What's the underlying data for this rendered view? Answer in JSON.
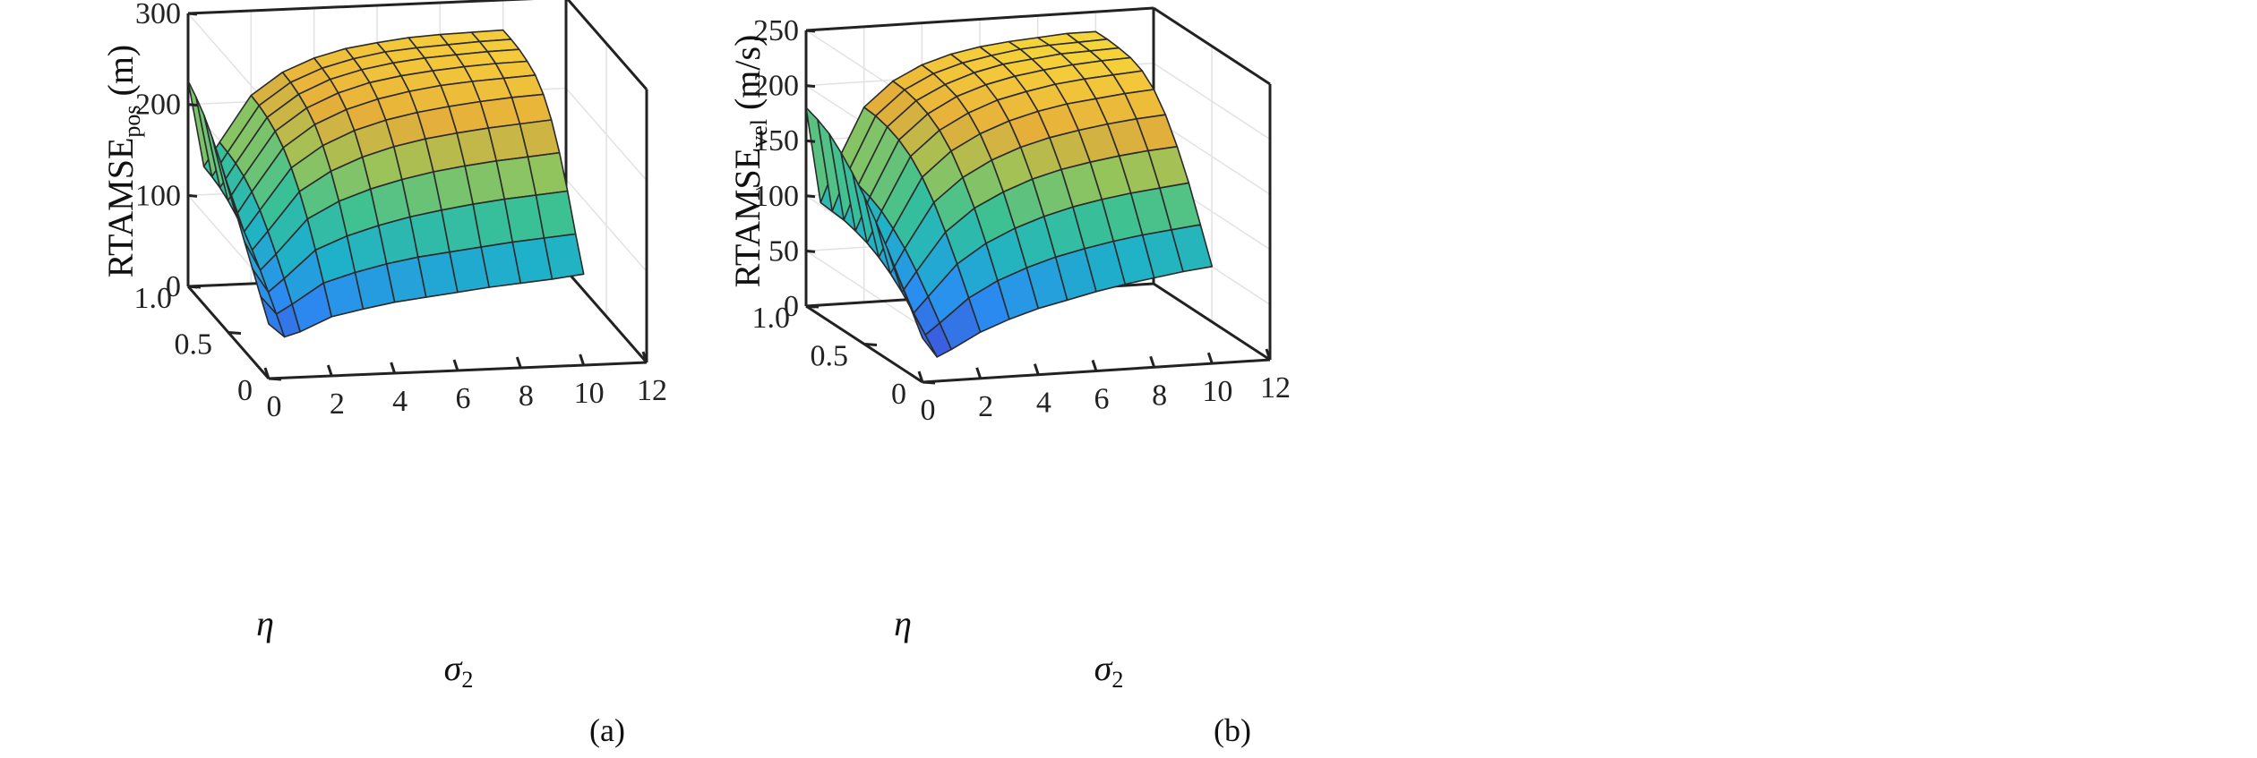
{
  "colors": {
    "colormap": [
      "#3e26a8",
      "#3a5ee0",
      "#2a8ef0",
      "#1fb1c8",
      "#3bc194",
      "#97c45a",
      "#e4ae3a",
      "#f4c83a",
      "#f5e83b"
    ],
    "axis": "#222222",
    "grid": "#e2e2e2"
  },
  "chart_data": [
    {
      "type": "surface",
      "caption": "(a)",
      "zlabel_main": "RTAMSE",
      "zlabel_sub": "pos",
      "zlabel_unit": " (m)",
      "xlabel_main": "σ",
      "xlabel_sub": "2",
      "ylabel": "η",
      "xlim": [
        0,
        12
      ],
      "ylim": [
        0,
        1
      ],
      "zlim": [
        0,
        300
      ],
      "x_ticks": [
        "0",
        "2",
        "4",
        "6",
        "8",
        "10",
        "12"
      ],
      "y_ticks": [
        "0",
        "0.5",
        "1.0"
      ],
      "z_ticks": [
        "0",
        "100",
        "200",
        "300"
      ],
      "sigma2": [
        0,
        0.5,
        1,
        2,
        3,
        4,
        5,
        6,
        7,
        8,
        9,
        10
      ],
      "eta": [
        0,
        0.1,
        0.2,
        0.3,
        0.4,
        0.5,
        0.6,
        0.7,
        0.8,
        0.9,
        1.0
      ],
      "z": [
        [
          60,
          45,
          50,
          65,
          72,
          78,
          82,
          86,
          90,
          93,
          96,
          100
        ],
        [
          80,
          60,
          70,
          92,
          102,
          110,
          116,
          120,
          124,
          128,
          131,
          134
        ],
        [
          100,
          74,
          88,
          118,
          132,
          142,
          150,
          156,
          161,
          165,
          168,
          171
        ],
        [
          120,
          88,
          105,
          142,
          160,
          172,
          181,
          188,
          193,
          197,
          200,
          203
        ],
        [
          140,
          100,
          120,
          162,
          183,
          197,
          207,
          214,
          219,
          223,
          226,
          229
        ],
        [
          160,
          110,
          133,
          178,
          201,
          216,
          226,
          233,
          238,
          242,
          245,
          247
        ],
        [
          178,
          118,
          143,
          190,
          214,
          229,
          239,
          246,
          251,
          254,
          256,
          258
        ],
        [
          194,
          124,
          150,
          198,
          222,
          237,
          247,
          253,
          257,
          260,
          262,
          263
        ],
        [
          208,
          128,
          154,
          203,
          227,
          242,
          251,
          257,
          261,
          263,
          265,
          266
        ],
        [
          218,
          130,
          156,
          206,
          230,
          244,
          253,
          259,
          262,
          264,
          266,
          267
        ],
        [
          226,
          131,
          157,
          207,
          231,
          245,
          254,
          259,
          263,
          265,
          266,
          267
        ]
      ]
    },
    {
      "type": "surface",
      "caption": "(b)",
      "zlabel_main": "RTAMSE",
      "zlabel_sub": "vel",
      "zlabel_unit": " (m/s)",
      "xlabel_main": "σ",
      "xlabel_sub": "2",
      "ylabel": "η",
      "xlim": [
        0,
        12
      ],
      "ylim": [
        0,
        1
      ],
      "zlim": [
        0,
        250
      ],
      "x_ticks": [
        "0",
        "2",
        "4",
        "6",
        "8",
        "10",
        "12"
      ],
      "y_ticks": [
        "0",
        "0.5",
        "1.0"
      ],
      "z_ticks": [
        "0",
        "50",
        "100",
        "150",
        "200",
        "250"
      ],
      "sigma2": [
        0,
        0.5,
        1,
        2,
        3,
        4,
        5,
        6,
        7,
        8,
        9,
        10
      ],
      "eta": [
        0,
        0.1,
        0.2,
        0.3,
        0.4,
        0.5,
        0.6,
        0.7,
        0.8,
        0.9,
        1.0
      ],
      "z": [
        [
          40,
          22,
          28,
          42,
          52,
          60,
          66,
          72,
          77,
          81,
          85,
          88
        ],
        [
          60,
          35,
          45,
          66,
          80,
          90,
          98,
          104,
          109,
          113,
          116,
          119
        ],
        [
          80,
          48,
          62,
          90,
          107,
          119,
          128,
          135,
          140,
          144,
          147,
          150
        ],
        [
          100,
          60,
          78,
          112,
          132,
          145,
          155,
          162,
          167,
          171,
          174,
          176
        ],
        [
          118,
          70,
          92,
          132,
          153,
          167,
          177,
          184,
          189,
          193,
          196,
          198
        ],
        [
          134,
          78,
          103,
          148,
          170,
          184,
          194,
          201,
          206,
          209,
          212,
          214
        ],
        [
          148,
          84,
          112,
          160,
          182,
          196,
          206,
          212,
          217,
          220,
          222,
          224
        ],
        [
          160,
          88,
          118,
          168,
          190,
          204,
          213,
          219,
          223,
          226,
          228,
          229
        ],
        [
          170,
          91,
          122,
          173,
          195,
          208,
          217,
          223,
          226,
          229,
          230,
          231
        ],
        [
          176,
          92,
          124,
          176,
          198,
          211,
          219,
          224,
          228,
          230,
          231,
          232
        ],
        [
          180,
          93,
          125,
          177,
          199,
          212,
          220,
          225,
          228,
          230,
          232,
          232
        ]
      ]
    }
  ]
}
